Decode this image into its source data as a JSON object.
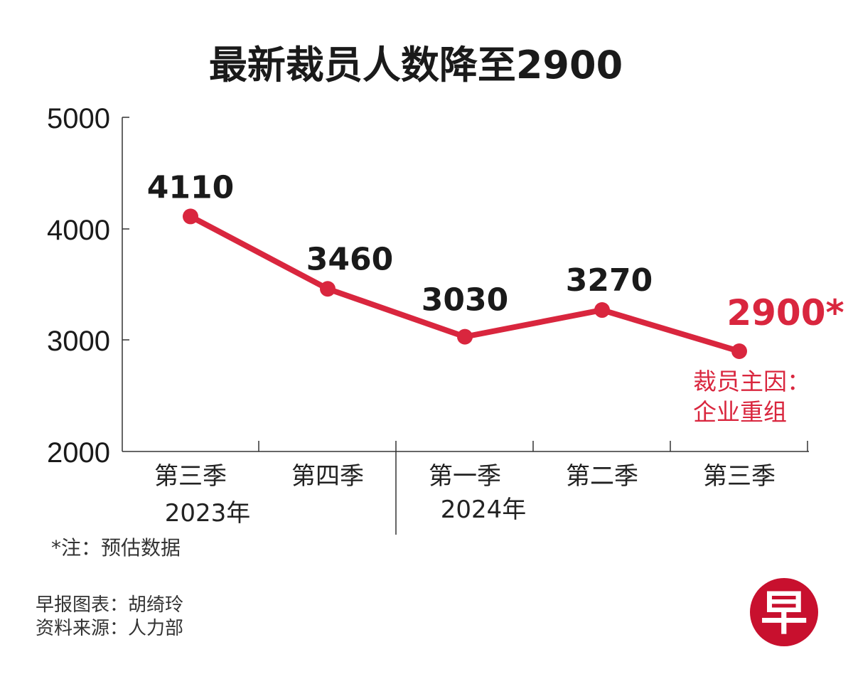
{
  "chart_data": {
    "type": "line",
    "title": "最新裁员人数降至2900",
    "categories": [
      "第三季",
      "第四季",
      "第一季",
      "第二季",
      "第三季"
    ],
    "years": [
      {
        "label": "2023年",
        "start": 0,
        "end": 1
      },
      {
        "label": "2024年",
        "start": 2,
        "end": 4
      }
    ],
    "series": [
      {
        "values": [
          4110,
          3460,
          3030,
          3270,
          2900
        ]
      }
    ],
    "data_labels": [
      "4110",
      "3460",
      "3030",
      "3270",
      "2900*"
    ],
    "yticks": [
      "2000",
      "3000",
      "4000",
      "5000"
    ],
    "ylim": [
      2000,
      5000
    ],
    "line_color": "#d9263e",
    "label_color": "#1a1a1a",
    "highlight_color": "#d9263e",
    "annotation": [
      "裁员主因：",
      "企业重组"
    ],
    "grid": false
  },
  "footnote": "*注：预估数据",
  "credits": [
    "早报图表：胡绮玲",
    "资料来源：人力部"
  ],
  "logo": {
    "text": "早",
    "color": "#c8102e"
  }
}
